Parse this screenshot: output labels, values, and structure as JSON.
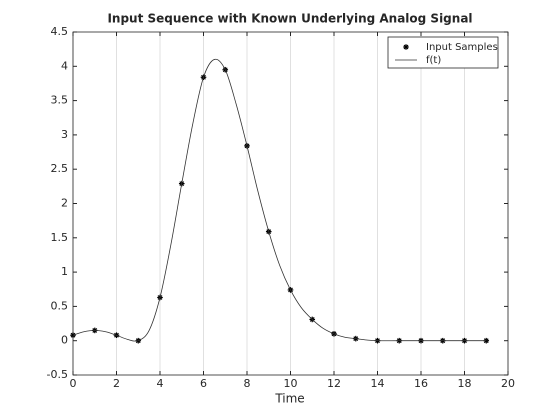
{
  "chart_data": {
    "type": "line",
    "title": "Input Sequence with Known Underlying Analog Signal",
    "x_label": "Time",
    "xlim": [
      0,
      20
    ],
    "xticks": [
      0,
      2,
      4,
      6,
      8,
      10,
      12,
      14,
      16,
      18,
      20
    ],
    "ylim": [
      -0.5,
      4.5
    ],
    "yticks": [
      -0.5,
      0,
      0.5,
      1,
      1.5,
      2,
      2.5,
      3,
      3.5,
      4,
      4.5
    ],
    "grid": "x",
    "legend": "top-right",
    "series": [
      {
        "name": "Input Samples",
        "color": "#000000",
        "mode": "markers",
        "x": [
          0,
          1,
          2,
          3,
          4,
          5,
          6,
          7,
          8,
          9,
          10,
          11,
          12,
          13,
          14,
          15,
          16,
          17,
          18,
          19
        ],
        "values": [
          0.08,
          0.15,
          0.08,
          0.0,
          0.63,
          2.29,
          3.84,
          3.95,
          2.84,
          1.59,
          0.74,
          0.31,
          0.1,
          0.03,
          0,
          0,
          0,
          0,
          0,
          0
        ]
      },
      {
        "name": "f(t)",
        "color": "#333333",
        "mode": "line",
        "x": [
          0,
          0.5,
          1,
          1.5,
          2,
          2.5,
          3,
          3.5,
          4,
          4.5,
          5,
          5.5,
          6,
          6.5,
          7,
          7.5,
          8,
          8.5,
          9,
          9.5,
          10,
          10.5,
          11,
          11.5,
          12,
          12.5,
          13,
          13.5,
          14,
          15,
          16,
          17,
          18,
          19
        ],
        "values": [
          0.08,
          0.13,
          0.15,
          0.13,
          0.08,
          0.02,
          0.0,
          0.15,
          0.63,
          1.4,
          2.29,
          3.15,
          3.84,
          4.1,
          3.95,
          3.45,
          2.84,
          2.18,
          1.59,
          1.1,
          0.74,
          0.48,
          0.31,
          0.18,
          0.1,
          0.05,
          0.03,
          0.01,
          0,
          0,
          0,
          0,
          0,
          0
        ]
      }
    ]
  }
}
